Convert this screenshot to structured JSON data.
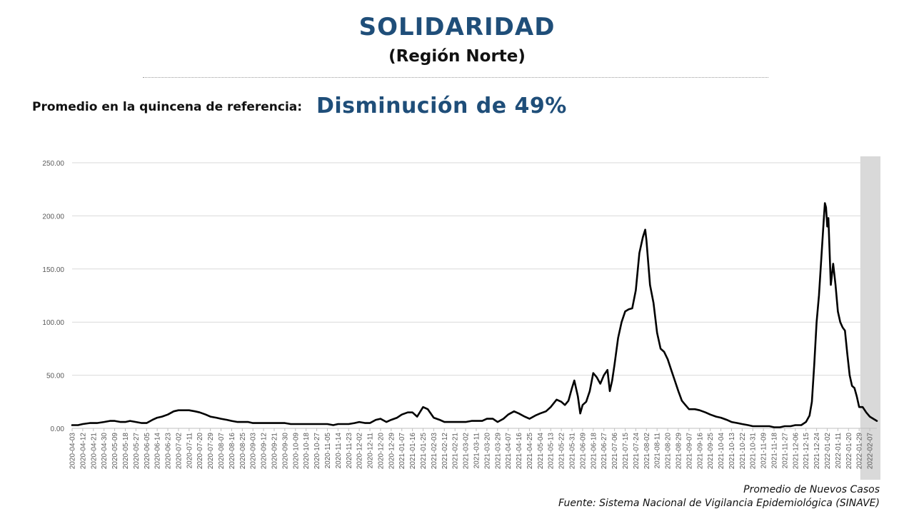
{
  "header": {
    "title": "SOLIDARIDAD",
    "subtitle": "(Región Norte)"
  },
  "summary": {
    "label": "Promedio en la quincena de referencia:",
    "value": "Disminución de 49%"
  },
  "footer": {
    "series_label": "Promedio de Nuevos Casos",
    "source": "Fuente: Sistema Nacional de Vigilancia Epidemiológica (SINAVE)"
  },
  "colors": {
    "title": "#1f4e79",
    "line": "#000000",
    "grid": "#d9d9d9",
    "highlight": "#d9d9d9"
  },
  "chart_data": {
    "type": "line",
    "title": "",
    "xlabel": "",
    "ylabel": "",
    "ylim": [
      0,
      250
    ],
    "yticks": [
      "0.00",
      "50.00",
      "100.00",
      "150.00",
      "200.00",
      "250.00"
    ],
    "grid": "horizontal",
    "x_start": "2020-04-03",
    "x_end": "2022-02-13",
    "xtick_labels": [
      "2020-04-03",
      "2020-04-12",
      "2020-04-21",
      "2020-04-30",
      "2020-05-09",
      "2020-05-18",
      "2020-05-27",
      "2020-06-05",
      "2020-06-14",
      "2020-06-23",
      "2020-07-02",
      "2020-07-11",
      "2020-07-20",
      "2020-07-29",
      "2020-08-07",
      "2020-08-16",
      "2020-08-25",
      "2020-09-03",
      "2020-09-12",
      "2020-09-21",
      "2020-09-30",
      "2020-10-09",
      "2020-10-18",
      "2020-10-27",
      "2020-11-05",
      "2020-11-14",
      "2020-11-23",
      "2020-12-02",
      "2020-12-11",
      "2020-12-20",
      "2020-12-29",
      "2021-01-07",
      "2021-01-16",
      "2021-01-25",
      "2021-02-03",
      "2021-02-12",
      "2021-02-21",
      "2021-03-02",
      "2021-03-11",
      "2021-03-20",
      "2021-03-29",
      "2021-04-07",
      "2021-04-16",
      "2021-04-25",
      "2021-05-04",
      "2021-05-13",
      "2021-05-22",
      "2021-05-31",
      "2021-06-09",
      "2021-06-18",
      "2021-06-27",
      "2021-07-06",
      "2021-07-15",
      "2021-07-24",
      "2021-08-02",
      "2021-08-11",
      "2021-08-20",
      "2021-08-29",
      "2021-09-07",
      "2021-09-16",
      "2021-09-25",
      "2021-10-04",
      "2021-10-13",
      "2021-10-22",
      "2021-10-31",
      "2021-11-09",
      "2021-11-18",
      "2021-11-27",
      "2021-12-06",
      "2021-12-15",
      "2021-12-24",
      "2022-01-02",
      "2022-01-11",
      "2022-01-20",
      "2022-01-29",
      "2022-02-07"
    ],
    "highlight_range": [
      "2022-01-30",
      "2022-02-13"
    ],
    "series": [
      {
        "name": "Promedio de Nuevos Casos",
        "points": [
          [
            "2020-04-03",
            3
          ],
          [
            "2020-04-08",
            3
          ],
          [
            "2020-04-12",
            4
          ],
          [
            "2020-04-18",
            5
          ],
          [
            "2020-04-24",
            5
          ],
          [
            "2020-04-30",
            6
          ],
          [
            "2020-05-05",
            7
          ],
          [
            "2020-05-09",
            7
          ],
          [
            "2020-05-14",
            6
          ],
          [
            "2020-05-18",
            6
          ],
          [
            "2020-05-22",
            7
          ],
          [
            "2020-05-27",
            6
          ],
          [
            "2020-06-01",
            5
          ],
          [
            "2020-06-05",
            5
          ],
          [
            "2020-06-10",
            8
          ],
          [
            "2020-06-14",
            10
          ],
          [
            "2020-06-18",
            11
          ],
          [
            "2020-06-23",
            13
          ],
          [
            "2020-06-28",
            16
          ],
          [
            "2020-07-02",
            17
          ],
          [
            "2020-07-07",
            17
          ],
          [
            "2020-07-11",
            17
          ],
          [
            "2020-07-16",
            16
          ],
          [
            "2020-07-20",
            15
          ],
          [
            "2020-07-25",
            13
          ],
          [
            "2020-07-29",
            11
          ],
          [
            "2020-08-03",
            10
          ],
          [
            "2020-08-07",
            9
          ],
          [
            "2020-08-12",
            8
          ],
          [
            "2020-08-16",
            7
          ],
          [
            "2020-08-21",
            6
          ],
          [
            "2020-08-25",
            6
          ],
          [
            "2020-08-30",
            6
          ],
          [
            "2020-09-03",
            5
          ],
          [
            "2020-09-08",
            5
          ],
          [
            "2020-09-12",
            5
          ],
          [
            "2020-09-17",
            5
          ],
          [
            "2020-09-21",
            5
          ],
          [
            "2020-09-26",
            5
          ],
          [
            "2020-09-30",
            5
          ],
          [
            "2020-10-05",
            4
          ],
          [
            "2020-10-09",
            4
          ],
          [
            "2020-10-14",
            4
          ],
          [
            "2020-10-18",
            4
          ],
          [
            "2020-10-23",
            4
          ],
          [
            "2020-10-27",
            4
          ],
          [
            "2020-11-01",
            4
          ],
          [
            "2020-11-05",
            4
          ],
          [
            "2020-11-10",
            3
          ],
          [
            "2020-11-14",
            4
          ],
          [
            "2020-11-19",
            4
          ],
          [
            "2020-11-23",
            4
          ],
          [
            "2020-11-28",
            5
          ],
          [
            "2020-12-02",
            6
          ],
          [
            "2020-12-07",
            5
          ],
          [
            "2020-12-11",
            5
          ],
          [
            "2020-12-16",
            8
          ],
          [
            "2020-12-20",
            9
          ],
          [
            "2020-12-25",
            6
          ],
          [
            "2020-12-29",
            8
          ],
          [
            "2021-01-03",
            10
          ],
          [
            "2021-01-07",
            13
          ],
          [
            "2021-01-12",
            15
          ],
          [
            "2021-01-16",
            15
          ],
          [
            "2021-01-20",
            11
          ],
          [
            "2021-01-25",
            20
          ],
          [
            "2021-01-29",
            18
          ],
          [
            "2021-02-03",
            10
          ],
          [
            "2021-02-08",
            8
          ],
          [
            "2021-02-12",
            6
          ],
          [
            "2021-02-17",
            6
          ],
          [
            "2021-02-21",
            6
          ],
          [
            "2021-02-26",
            6
          ],
          [
            "2021-03-02",
            6
          ],
          [
            "2021-03-07",
            7
          ],
          [
            "2021-03-11",
            7
          ],
          [
            "2021-03-16",
            7
          ],
          [
            "2021-03-20",
            9
          ],
          [
            "2021-03-25",
            9
          ],
          [
            "2021-03-29",
            6
          ],
          [
            "2021-04-03",
            9
          ],
          [
            "2021-04-07",
            13
          ],
          [
            "2021-04-12",
            16
          ],
          [
            "2021-04-16",
            14
          ],
          [
            "2021-04-21",
            11
          ],
          [
            "2021-04-25",
            9
          ],
          [
            "2021-04-30",
            12
          ],
          [
            "2021-05-04",
            14
          ],
          [
            "2021-05-09",
            16
          ],
          [
            "2021-05-13",
            20
          ],
          [
            "2021-05-18",
            27
          ],
          [
            "2021-05-22",
            25
          ],
          [
            "2021-05-25",
            22
          ],
          [
            "2021-05-28",
            26
          ],
          [
            "2021-05-31",
            38
          ],
          [
            "2021-06-02",
            45
          ],
          [
            "2021-06-05",
            30
          ],
          [
            "2021-06-07",
            14
          ],
          [
            "2021-06-09",
            22
          ],
          [
            "2021-06-12",
            25
          ],
          [
            "2021-06-15",
            35
          ],
          [
            "2021-06-18",
            52
          ],
          [
            "2021-06-21",
            48
          ],
          [
            "2021-06-24",
            42
          ],
          [
            "2021-06-27",
            50
          ],
          [
            "2021-06-30",
            55
          ],
          [
            "2021-07-02",
            35
          ],
          [
            "2021-07-04",
            45
          ],
          [
            "2021-07-06",
            60
          ],
          [
            "2021-07-09",
            85
          ],
          [
            "2021-07-12",
            100
          ],
          [
            "2021-07-15",
            110
          ],
          [
            "2021-07-18",
            112
          ],
          [
            "2021-07-21",
            113
          ],
          [
            "2021-07-24",
            130
          ],
          [
            "2021-07-27",
            165
          ],
          [
            "2021-07-30",
            180
          ],
          [
            "2021-08-01",
            187
          ],
          [
            "2021-08-02",
            177
          ],
          [
            "2021-08-05",
            135
          ],
          [
            "2021-08-08",
            118
          ],
          [
            "2021-08-11",
            90
          ],
          [
            "2021-08-14",
            75
          ],
          [
            "2021-08-17",
            72
          ],
          [
            "2021-08-20",
            65
          ],
          [
            "2021-08-23",
            55
          ],
          [
            "2021-08-26",
            45
          ],
          [
            "2021-08-29",
            35
          ],
          [
            "2021-09-01",
            26
          ],
          [
            "2021-09-04",
            22
          ],
          [
            "2021-09-07",
            18
          ],
          [
            "2021-09-12",
            18
          ],
          [
            "2021-09-16",
            17
          ],
          [
            "2021-09-21",
            15
          ],
          [
            "2021-09-25",
            13
          ],
          [
            "2021-09-30",
            11
          ],
          [
            "2021-10-04",
            10
          ],
          [
            "2021-10-09",
            8
          ],
          [
            "2021-10-13",
            6
          ],
          [
            "2021-10-18",
            5
          ],
          [
            "2021-10-22",
            4
          ],
          [
            "2021-10-27",
            3
          ],
          [
            "2021-10-31",
            2
          ],
          [
            "2021-11-05",
            2
          ],
          [
            "2021-11-09",
            2
          ],
          [
            "2021-11-14",
            2
          ],
          [
            "2021-11-18",
            1
          ],
          [
            "2021-11-23",
            1
          ],
          [
            "2021-11-27",
            2
          ],
          [
            "2021-12-02",
            2
          ],
          [
            "2021-12-06",
            3
          ],
          [
            "2021-12-11",
            3
          ],
          [
            "2021-12-15",
            6
          ],
          [
            "2021-12-18",
            12
          ],
          [
            "2021-12-20",
            25
          ],
          [
            "2021-12-22",
            60
          ],
          [
            "2021-12-24",
            100
          ],
          [
            "2021-12-26",
            125
          ],
          [
            "2021-12-28",
            160
          ],
          [
            "2021-12-30",
            195
          ],
          [
            "2021-12-31",
            212
          ],
          [
            "2022-01-01",
            208
          ],
          [
            "2022-01-02",
            190
          ],
          [
            "2022-01-03",
            198
          ],
          [
            "2022-01-05",
            135
          ],
          [
            "2022-01-07",
            155
          ],
          [
            "2022-01-09",
            135
          ],
          [
            "2022-01-11",
            110
          ],
          [
            "2022-01-13",
            100
          ],
          [
            "2022-01-15",
            95
          ],
          [
            "2022-01-17",
            92
          ],
          [
            "2022-01-19",
            70
          ],
          [
            "2022-01-21",
            50
          ],
          [
            "2022-01-23",
            40
          ],
          [
            "2022-01-25",
            38
          ],
          [
            "2022-01-27",
            30
          ],
          [
            "2022-01-29",
            20
          ],
          [
            "2022-02-01",
            20
          ],
          [
            "2022-02-04",
            15
          ],
          [
            "2022-02-07",
            11
          ],
          [
            "2022-02-10",
            9
          ],
          [
            "2022-02-13",
            7
          ]
        ]
      }
    ]
  }
}
